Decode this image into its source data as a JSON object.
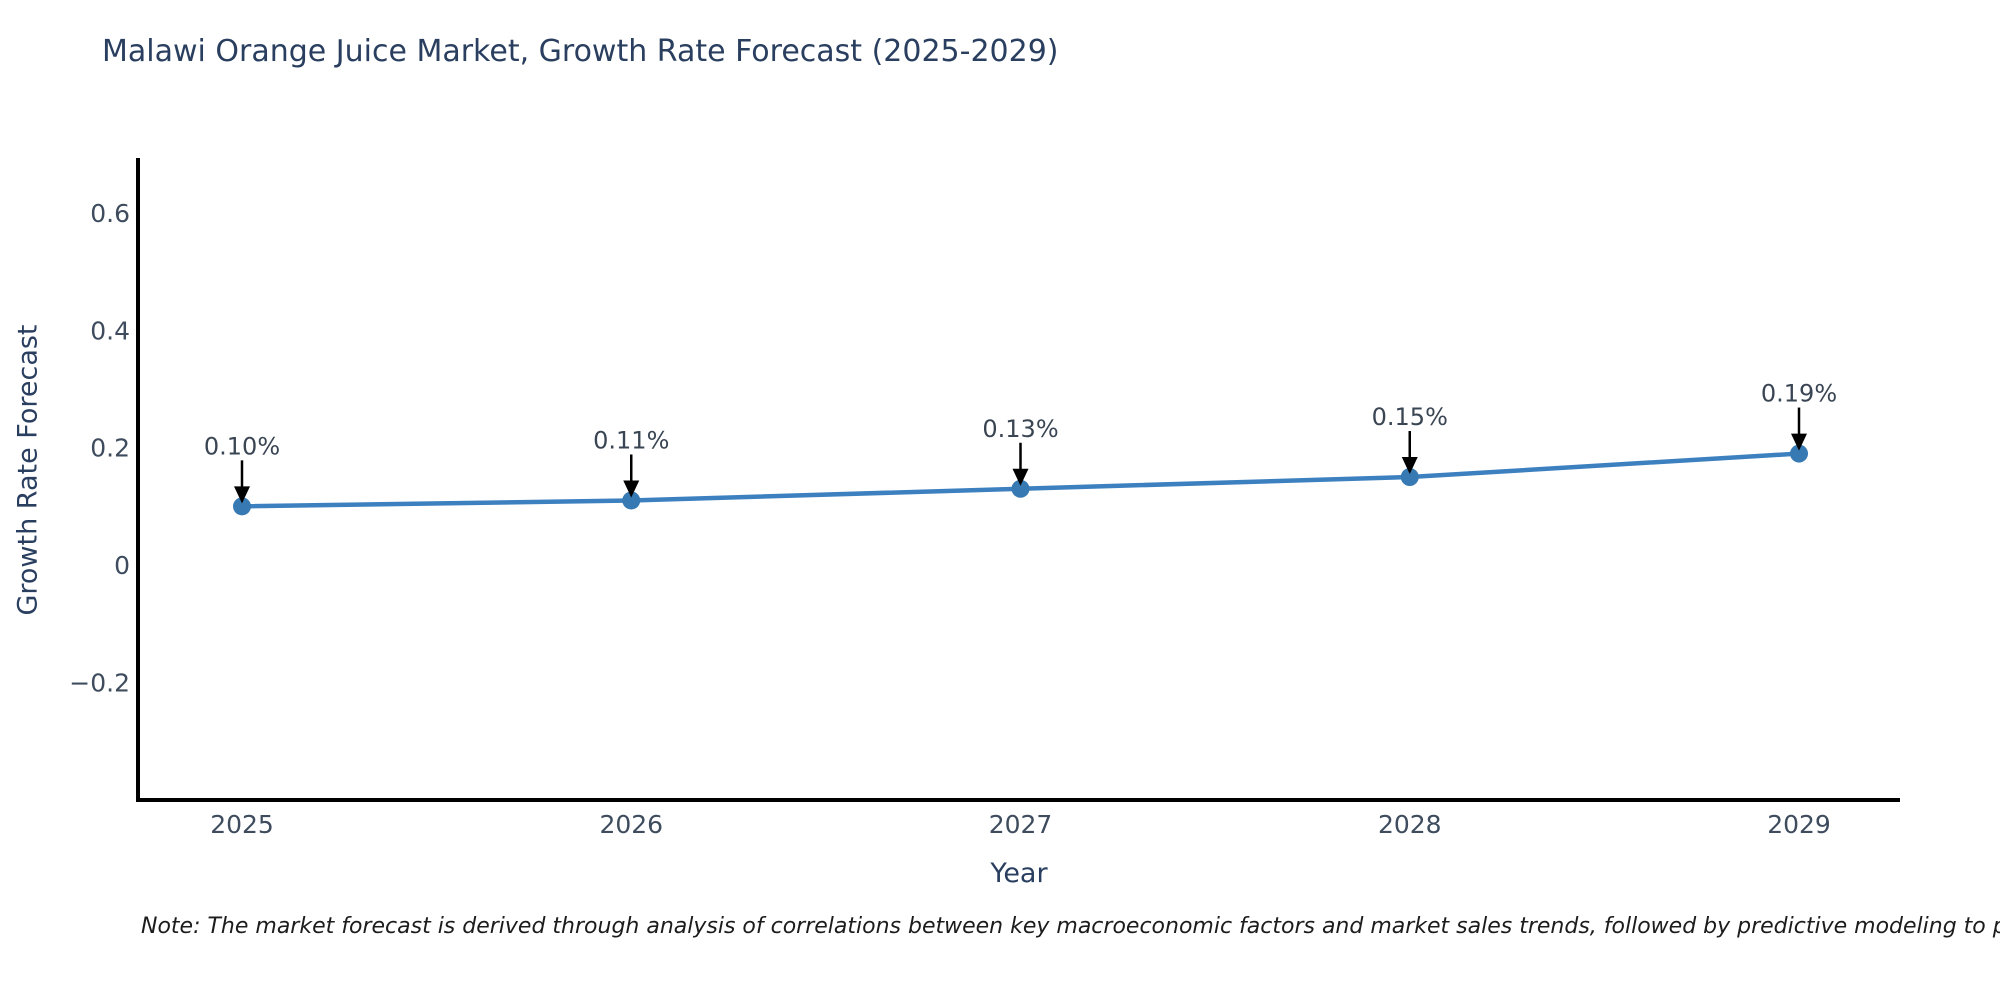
{
  "note": "Note: The market forecast is derived through analysis of correlations between key macroeconomic factors and market sales trends, followed by predictive modeling to project future sa",
  "chart_data": {
    "type": "line",
    "title": "Malawi Orange Juice Market, Growth Rate Forecast (2025-2029)",
    "xlabel": "Year",
    "ylabel": "Growth Rate Forecast",
    "x": [
      2025,
      2026,
      2027,
      2028,
      2029
    ],
    "series": [
      {
        "name": "Growth Rate Forecast",
        "values": [
          0.1,
          0.11,
          0.13,
          0.15,
          0.19
        ]
      }
    ],
    "point_labels": [
      "0.10%",
      "0.11%",
      "0.13%",
      "0.15%",
      "0.19%"
    ],
    "yticks": [
      -0.2,
      0,
      0.2,
      0.4,
      0.6
    ],
    "ytick_labels": [
      "−0.2",
      "0",
      "0.2",
      "0.4",
      "0.6"
    ],
    "ylim": [
      -0.4,
      0.74
    ],
    "grid": false,
    "legend": false,
    "annotations_have_arrows": true,
    "colors": {
      "line": "#3d80bf",
      "marker": "#3679b3",
      "arrow": "#000000",
      "axis": "#000000",
      "title_text": "#2a3f5f",
      "tick_text": "#3e4c5e"
    }
  }
}
